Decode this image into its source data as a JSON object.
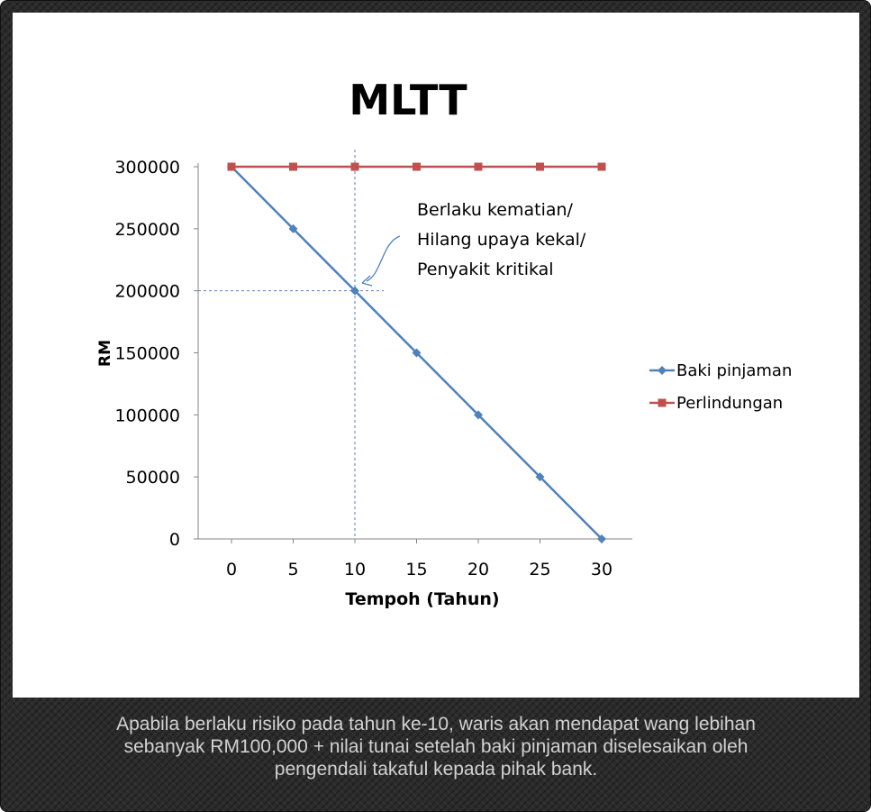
{
  "chart_data": {
    "type": "line",
    "title": "MLTT",
    "xlabel": "Tempoh (Tahun)",
    "ylabel": "RM",
    "x": [
      0,
      5,
      10,
      15,
      20,
      25,
      30
    ],
    "xticks": [
      "0",
      "5",
      "10",
      "15",
      "20",
      "25",
      "30"
    ],
    "yticks": [
      "0",
      "50000",
      "100000",
      "150000",
      "200000",
      "250000",
      "300000"
    ],
    "ylim": [
      0,
      300000
    ],
    "xlim": [
      0,
      30
    ],
    "grid": false,
    "legend": "right",
    "series": [
      {
        "name": "Baki pinjaman",
        "color": "#4f81bd",
        "marker": "diamond",
        "values": [
          300000,
          250000,
          200000,
          150000,
          100000,
          50000,
          0
        ]
      },
      {
        "name": "Perlindungan",
        "color": "#c0504d",
        "marker": "square",
        "values": [
          300000,
          300000,
          300000,
          300000,
          300000,
          300000,
          300000
        ]
      }
    ],
    "annotation": {
      "lines": [
        "Berlaku kematian/",
        "Hilang upaya kekal/",
        "Penyakit kritikal"
      ],
      "x": 10,
      "y": 200000
    }
  },
  "caption": {
    "lines": [
      "Apabila berlaku risiko pada tahun ke-10, waris akan mendapat wang lebihan",
      "sebanyak RM100,000 + nilai tunai setelah baki pinjaman diselesaikan oleh",
      "pengendali takaful kepada pihak bank."
    ]
  }
}
